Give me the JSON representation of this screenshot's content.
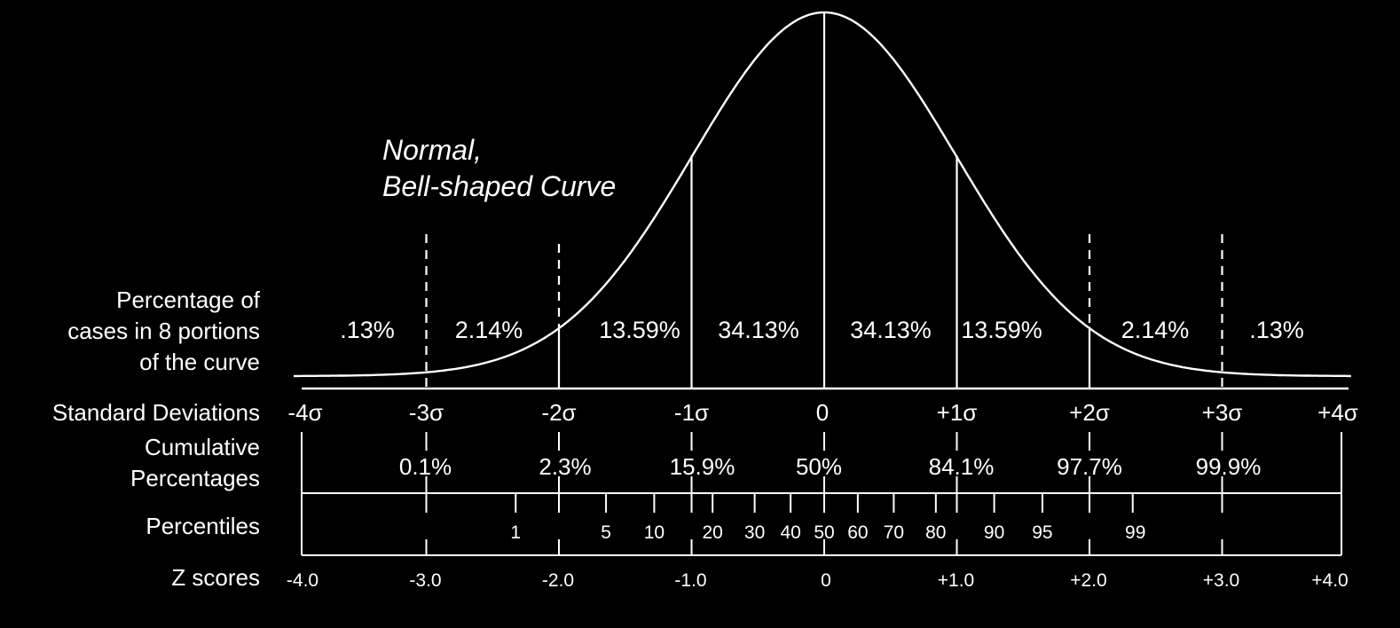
{
  "title_lines": [
    "Normal,",
    "Bell-shaped Curve"
  ],
  "row_labels": {
    "percentage": [
      "Percentage of",
      "cases in 8 portions",
      "of the curve"
    ],
    "sd": "Standard Deviations",
    "cumulative": [
      "Cumulative",
      "Percentages"
    ],
    "percentiles": "Percentiles",
    "z": "Z scores"
  },
  "region_percentages": [
    ".13%",
    "2.14%",
    "13.59%",
    "34.13%",
    "34.13%",
    "13.59%",
    "2.14%",
    ".13%"
  ],
  "sd_labels": [
    "-4σ",
    "-3σ",
    "-2σ",
    "-1σ",
    "0",
    "+1σ",
    "+2σ",
    "+3σ",
    "+4σ"
  ],
  "cumulative": [
    {
      "z": -3,
      "label": "0.1%"
    },
    {
      "z": -2,
      "label": "2.3%"
    },
    {
      "z": -1,
      "label": "15.9%"
    },
    {
      "z": 0,
      "label": "50%"
    },
    {
      "z": 1,
      "label": "84.1%"
    },
    {
      "z": 2,
      "label": "97.7%"
    },
    {
      "z": 3,
      "label": "99.9%"
    }
  ],
  "percentiles": [
    {
      "z": -2.326,
      "label": "1"
    },
    {
      "z": -1.645,
      "label": "5"
    },
    {
      "z": -1.2816,
      "label": "10"
    },
    {
      "z": -0.8416,
      "label": "20"
    },
    {
      "z": -0.5244,
      "label": "30"
    },
    {
      "z": -0.2533,
      "label": "40"
    },
    {
      "z": 0,
      "label": "50"
    },
    {
      "z": 0.2533,
      "label": "60"
    },
    {
      "z": 0.5244,
      "label": "70"
    },
    {
      "z": 0.8416,
      "label": "80"
    },
    {
      "z": 1.2816,
      "label": "90"
    },
    {
      "z": 1.645,
      "label": "95"
    },
    {
      "z": 2.326,
      "label": "99"
    }
  ],
  "z_scores": [
    "-4.0",
    "-3.0",
    "-2.0",
    "-1.0",
    "0",
    "+1.0",
    "+2.0",
    "+3.0",
    "+4.0"
  ],
  "colors": {
    "background": "#000000",
    "foreground": "#ffffff"
  }
}
